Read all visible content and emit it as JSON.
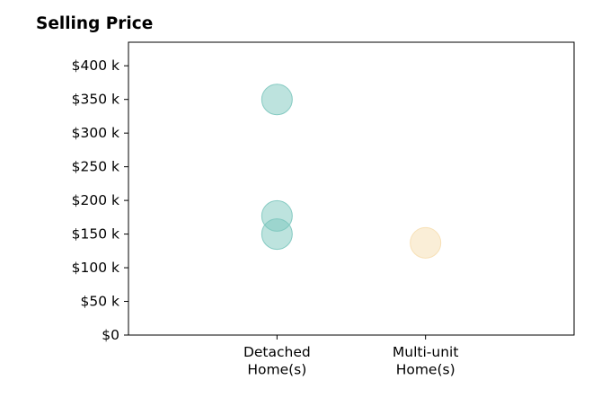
{
  "chart_data": {
    "type": "scatter",
    "title": "Selling Price",
    "xlabel": "",
    "ylabel": "",
    "categories": [
      [
        "Detached",
        "Home(s)"
      ],
      [
        "Multi-unit",
        "Home(s)"
      ]
    ],
    "xlim": [
      0,
      3
    ],
    "ylim": [
      0,
      435000
    ],
    "yticks": [
      0,
      50000,
      100000,
      150000,
      200000,
      250000,
      300000,
      350000,
      400000
    ],
    "ytick_labels": [
      "$0",
      "$50 k",
      "$100 k",
      "$150 k",
      "$200 k",
      "$250 k",
      "$300 k",
      "$350 k",
      "$400 k"
    ],
    "grid": false,
    "legend": "none",
    "series": [
      {
        "color": "#7cc7be",
        "points": [
          {
            "x": 1,
            "y": 350000
          },
          {
            "x": 1,
            "y": 177000
          },
          {
            "x": 1,
            "y": 150000
          }
        ]
      },
      {
        "color": "#f6deb0",
        "points": [
          {
            "x": 2,
            "y": 137000
          }
        ]
      }
    ]
  }
}
